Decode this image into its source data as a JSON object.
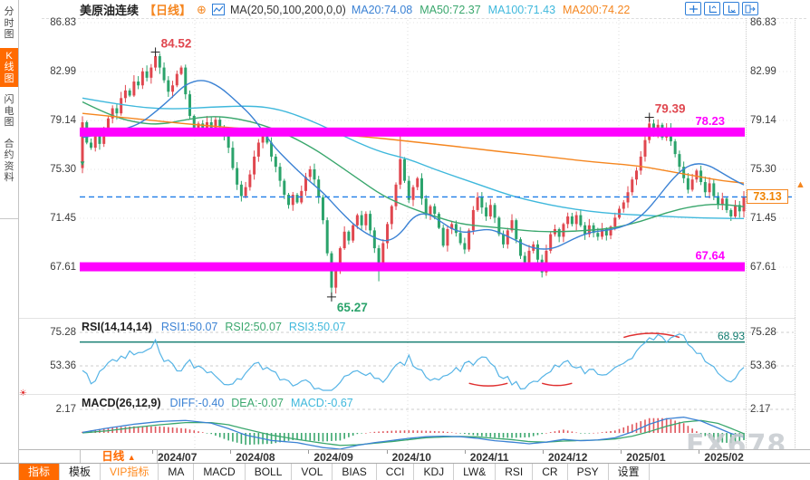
{
  "header": {
    "title": "美原油连续",
    "period_label": "【日线】",
    "ma_formula": "MA(20,50,100,200,0,0)",
    "ma_values": [
      {
        "label": "MA20:74.08",
        "color": "#3b82d4"
      },
      {
        "label": "MA50:72.37",
        "color": "#3aa76d"
      },
      {
        "label": "MA100:71.43",
        "color": "#3fb8dc"
      },
      {
        "label": "MA200:74.22",
        "color": "#f5861f"
      }
    ]
  },
  "sidebar": {
    "items": [
      {
        "label": "分时图",
        "active": false
      },
      {
        "label": "K线图",
        "active": true
      },
      {
        "label": "闪电图",
        "active": false
      },
      {
        "label": "合约资料",
        "active": false
      }
    ]
  },
  "rsi_header": {
    "formula": "RSI(14,14,14)",
    "values": [
      {
        "label": "RSI1:50.07",
        "color": "#3b82d4"
      },
      {
        "label": "RSI2:50.07",
        "color": "#3aa76d"
      },
      {
        "label": "RSI3:50.07",
        "color": "#3fb8dc"
      }
    ]
  },
  "macd_header": {
    "formula": "MACD(26,12,9)",
    "values": [
      {
        "label": "DIFF:-0.40",
        "color": "#3b82d4"
      },
      {
        "label": "DEA:-0.07",
        "color": "#3aa76d"
      },
      {
        "label": "MACD:-0.67",
        "color": "#3fb8dc"
      }
    ]
  },
  "x_axis": {
    "period": "日线",
    "dates": [
      "2024/07",
      "2024/08",
      "2024/09",
      "2024/10",
      "2024/11",
      "2024/12",
      "2025/01",
      "2025/02"
    ]
  },
  "toolbar": {
    "tabs": [
      {
        "label": "指标",
        "active": true
      },
      {
        "label": "模板"
      },
      {
        "label": "VIP指标",
        "vip": true
      },
      {
        "label": "MA"
      },
      {
        "label": "MACD"
      },
      {
        "label": "BOLL"
      },
      {
        "label": "VOL"
      },
      {
        "label": "BIAS"
      },
      {
        "label": "CCI"
      },
      {
        "label": "KDJ"
      },
      {
        "label": "LW&"
      },
      {
        "label": "RSI"
      },
      {
        "label": "CR"
      },
      {
        "label": "PSY"
      },
      {
        "label": "设置"
      }
    ]
  },
  "annotations": {
    "peak_high": "84.52",
    "jan_high": "79.39",
    "sep_low": "65.27",
    "resistance": "78.23",
    "support": "67.64",
    "last_price": "73.13",
    "rsi_level": "68.93"
  },
  "watermark": "FX678",
  "colors": {
    "up": "#e0474f",
    "down": "#2ba36b",
    "ma20": "#3b82d4",
    "ma50": "#3aa76d",
    "ma100": "#3fb8dc",
    "ma200": "#f5861f",
    "band": "#ff00ff",
    "dashed": "#1f7ce8",
    "rsi_line": "#56b4e6",
    "teal": "#0f7a6e",
    "arc_red": "#e03030",
    "hist_up": "#e0565c",
    "hist_down": "#3aa76d"
  },
  "chart_data": {
    "type": "candlestick",
    "symbol": "美原油连续",
    "period": "日线",
    "y_axis": [
      86.83,
      82.99,
      79.14,
      75.3,
      71.45,
      67.61
    ],
    "first_open": 75.4,
    "closes": [
      79.0,
      77.4,
      77.0,
      77.9,
      77.3,
      78.3,
      79.3,
      80.1,
      79.7,
      80.9,
      81.5,
      81.1,
      82.2,
      81.9,
      83.0,
      82.5,
      83.3,
      84.2,
      83.3,
      82.3,
      81.4,
      81.9,
      82.8,
      83.3,
      81.2,
      79.5,
      78.4,
      78.9,
      78.3,
      79.0,
      78.5,
      79.2,
      78.6,
      77.9,
      77.0,
      75.4,
      74.1,
      73.2,
      73.9,
      74.9,
      76.3,
      77.4,
      78.1,
      77.4,
      76.3,
      75.5,
      74.4,
      73.3,
      72.5,
      73.3,
      72.7,
      73.6,
      74.7,
      75.3,
      74.5,
      73.1,
      71.3,
      68.7,
      66.0,
      67.4,
      69.1,
      70.4,
      69.7,
      70.9,
      71.7,
      70.9,
      71.8,
      70.5,
      69.1,
      67.8,
      69.5,
      71.0,
      72.4,
      74.1,
      76.1,
      74.4,
      72.9,
      73.9,
      74.6,
      73.0,
      71.7,
      72.4,
      71.8,
      70.7,
      69.3,
      70.6,
      71.0,
      70.3,
      69.5,
      69.0,
      70.5,
      72.1,
      73.1,
      72.3,
      71.6,
      72.5,
      71.5,
      70.2,
      69.4,
      70.5,
      71.3,
      69.8,
      68.5,
      68.0,
      68.9,
      69.4,
      68.2,
      67.2,
      68.9,
      70.2,
      70.6,
      70.0,
      71.0,
      71.6,
      71.0,
      71.7,
      70.9,
      70.2,
      70.9,
      70.3,
      70.0,
      70.6,
      70.1,
      70.8,
      71.5,
      72.2,
      72.7,
      73.5,
      74.5,
      75.2,
      76.3,
      77.6,
      78.9,
      78.1,
      78.8,
      77.8,
      78.5,
      77.5,
      76.5,
      75.5,
      74.6,
      73.7,
      74.5,
      75.2,
      74.3,
      73.5,
      74.2,
      73.2,
      72.5,
      73.0,
      72.1,
      71.6,
      72.5,
      72.0,
      73.13
    ],
    "wick_overrides": {
      "0": {
        "low": 75.0
      },
      "17": {
        "high": 84.52
      },
      "58": {
        "low": 65.27
      },
      "69": {
        "low": 66.5
      },
      "74": {
        "high": 77.9
      },
      "107": {
        "low": 66.8
      },
      "132": {
        "high": 79.39
      }
    },
    "annotations": [
      {
        "index": 17,
        "price": 84.52,
        "text": "84.52",
        "pos": "above",
        "color": "red"
      },
      {
        "index": 58,
        "price": 65.27,
        "text": "65.27",
        "pos": "below",
        "color": "green"
      },
      {
        "index": 132,
        "price": 79.39,
        "text": "79.39",
        "pos": "above",
        "color": "red"
      }
    ],
    "support_resistance": [
      {
        "value": 78.23,
        "label": "78.23"
      },
      {
        "value": 67.64,
        "label": "67.64"
      }
    ],
    "last_price": 73.13,
    "ma20_anchors": [
      [
        0,
        77.8
      ],
      [
        8,
        78.3
      ],
      [
        13,
        78.8
      ],
      [
        17,
        79.8
      ],
      [
        21,
        81.0
      ],
      [
        24,
        82.0
      ],
      [
        28,
        82.4
      ],
      [
        32,
        81.8
      ],
      [
        36,
        80.6
      ],
      [
        40,
        79.3
      ],
      [
        44,
        77.3
      ],
      [
        48,
        75.9
      ],
      [
        52,
        74.6
      ],
      [
        56,
        73.5
      ],
      [
        60,
        72.0
      ],
      [
        64,
        70.7
      ],
      [
        68,
        69.9
      ],
      [
        71,
        69.6
      ],
      [
        74,
        70.2
      ],
      [
        77,
        71.6
      ],
      [
        80,
        71.9
      ],
      [
        83,
        71.3
      ],
      [
        86,
        70.6
      ],
      [
        89,
        70.3
      ],
      [
        92,
        70.5
      ],
      [
        95,
        70.6
      ],
      [
        98,
        70.2
      ],
      [
        101,
        69.7
      ],
      [
        104,
        69.2
      ],
      [
        107,
        69.0
      ],
      [
        110,
        69.1
      ],
      [
        113,
        69.6
      ],
      [
        116,
        70.1
      ],
      [
        119,
        70.4
      ],
      [
        122,
        70.5
      ],
      [
        125,
        70.7
      ],
      [
        128,
        71.1
      ],
      [
        131,
        71.9
      ],
      [
        134,
        73.1
      ],
      [
        137,
        74.4
      ],
      [
        140,
        75.4
      ],
      [
        143,
        75.8
      ],
      [
        146,
        75.6
      ],
      [
        149,
        75.0
      ],
      [
        152,
        74.4
      ],
      [
        154,
        74.08
      ]
    ],
    "ma50_anchors": [
      [
        0,
        80.6
      ],
      [
        6,
        79.6
      ],
      [
        12,
        79.0
      ],
      [
        18,
        78.8
      ],
      [
        24,
        79.2
      ],
      [
        30,
        79.5
      ],
      [
        36,
        79.3
      ],
      [
        42,
        78.8
      ],
      [
        48,
        78.0
      ],
      [
        54,
        76.9
      ],
      [
        58,
        76.0
      ],
      [
        64,
        74.6
      ],
      [
        70,
        73.2
      ],
      [
        76,
        72.3
      ],
      [
        82,
        71.6
      ],
      [
        88,
        71.0
      ],
      [
        94,
        70.8
      ],
      [
        100,
        70.6
      ],
      [
        106,
        70.4
      ],
      [
        112,
        70.4
      ],
      [
        118,
        70.5
      ],
      [
        124,
        70.7
      ],
      [
        130,
        71.2
      ],
      [
        136,
        71.9
      ],
      [
        142,
        72.4
      ],
      [
        148,
        72.6
      ],
      [
        154,
        72.37
      ]
    ],
    "ma100_anchors": [
      [
        0,
        80.9
      ],
      [
        10,
        80.3
      ],
      [
        20,
        80.0
      ],
      [
        30,
        80.2
      ],
      [
        40,
        80.3
      ],
      [
        46,
        80.0
      ],
      [
        52,
        79.3
      ],
      [
        58,
        78.4
      ],
      [
        64,
        77.4
      ],
      [
        70,
        76.6
      ],
      [
        76,
        76.1
      ],
      [
        82,
        75.3
      ],
      [
        88,
        74.6
      ],
      [
        94,
        73.9
      ],
      [
        100,
        73.2
      ],
      [
        106,
        72.7
      ],
      [
        112,
        72.3
      ],
      [
        118,
        72.0
      ],
      [
        124,
        71.8
      ],
      [
        130,
        71.7
      ],
      [
        136,
        71.6
      ],
      [
        142,
        71.5
      ],
      [
        148,
        71.45
      ],
      [
        154,
        71.43
      ]
    ],
    "ma200_anchors": [
      [
        0,
        79.7
      ],
      [
        12,
        79.3
      ],
      [
        23,
        78.9
      ],
      [
        34,
        78.6
      ],
      [
        44,
        78.3
      ],
      [
        55,
        78.1
      ],
      [
        65,
        77.9
      ],
      [
        76,
        77.5
      ],
      [
        87,
        77.1
      ],
      [
        97,
        76.7
      ],
      [
        108,
        76.3
      ],
      [
        118,
        75.9
      ],
      [
        129,
        75.6
      ],
      [
        134,
        75.3
      ],
      [
        139,
        75.0
      ],
      [
        144,
        74.7
      ],
      [
        149,
        74.4
      ],
      [
        154,
        74.22
      ]
    ],
    "rsi": {
      "axis": [
        75.28,
        53.36
      ],
      "line_level": 68.93,
      "anchors": [
        [
          0,
          50
        ],
        [
          2,
          42
        ],
        [
          5,
          52
        ],
        [
          8,
          58
        ],
        [
          11,
          62
        ],
        [
          14,
          60
        ],
        [
          17,
          68
        ],
        [
          19,
          58
        ],
        [
          22,
          50
        ],
        [
          25,
          55
        ],
        [
          28,
          52
        ],
        [
          31,
          46
        ],
        [
          34,
          40
        ],
        [
          37,
          44
        ],
        [
          40,
          56
        ],
        [
          43,
          52
        ],
        [
          46,
          45
        ],
        [
          49,
          40
        ],
        [
          52,
          46
        ],
        [
          55,
          38
        ],
        [
          58,
          34
        ],
        [
          61,
          45
        ],
        [
          64,
          50
        ],
        [
          67,
          47
        ],
        [
          70,
          42
        ],
        [
          73,
          52
        ],
        [
          76,
          58
        ],
        [
          79,
          50
        ],
        [
          82,
          44
        ],
        [
          85,
          48
        ],
        [
          88,
          52
        ],
        [
          91,
          55
        ],
        [
          94,
          58
        ],
        [
          97,
          48
        ],
        [
          100,
          42
        ],
        [
          103,
          40
        ],
        [
          106,
          44
        ],
        [
          109,
          52
        ],
        [
          112,
          56
        ],
        [
          115,
          52
        ],
        [
          118,
          50
        ],
        [
          121,
          48
        ],
        [
          124,
          52
        ],
        [
          127,
          58
        ],
        [
          130,
          66
        ],
        [
          133,
          72
        ],
        [
          136,
          70
        ],
        [
          139,
          74
        ],
        [
          141,
          68
        ],
        [
          144,
          60
        ],
        [
          147,
          52
        ],
        [
          149,
          46
        ],
        [
          151,
          41
        ],
        [
          153,
          48
        ],
        [
          154,
          52
        ]
      ],
      "arcs": [
        {
          "i1": 90,
          "i2": 99,
          "v": 42,
          "b": 6
        },
        {
          "i1": 107,
          "i2": 114,
          "v": 42,
          "b": 5
        },
        {
          "i1": 126,
          "i2": 139,
          "v": 72,
          "b": -9
        }
      ]
    },
    "macd": {
      "axis": [
        2.17
      ],
      "diff_anchors": [
        [
          0,
          0.05
        ],
        [
          6,
          0.45
        ],
        [
          12,
          0.8
        ],
        [
          18,
          1.05
        ],
        [
          24,
          1.15
        ],
        [
          30,
          0.9
        ],
        [
          34,
          0.4
        ],
        [
          38,
          -0.2
        ],
        [
          44,
          -0.7
        ],
        [
          50,
          -0.9
        ],
        [
          56,
          -1.35
        ],
        [
          60,
          -1.5
        ],
        [
          64,
          -1.15
        ],
        [
          68,
          -0.9
        ],
        [
          72,
          -0.7
        ],
        [
          76,
          -0.5
        ],
        [
          80,
          -0.35
        ],
        [
          84,
          -0.3
        ],
        [
          88,
          -0.35
        ],
        [
          92,
          -0.5
        ],
        [
          96,
          -0.72
        ],
        [
          100,
          -0.85
        ],
        [
          104,
          -1.0
        ],
        [
          108,
          -0.85
        ],
        [
          112,
          -0.6
        ],
        [
          116,
          -0.72
        ],
        [
          120,
          -0.65
        ],
        [
          124,
          -0.45
        ],
        [
          128,
          0.1
        ],
        [
          132,
          0.8
        ],
        [
          136,
          1.3
        ],
        [
          140,
          1.45
        ],
        [
          144,
          1.1
        ],
        [
          148,
          0.45
        ],
        [
          151,
          -0.05
        ],
        [
          154,
          -0.4
        ]
      ],
      "dea_anchors": [
        [
          0,
          0.0
        ],
        [
          6,
          0.2
        ],
        [
          12,
          0.5
        ],
        [
          18,
          0.75
        ],
        [
          24,
          0.95
        ],
        [
          30,
          0.95
        ],
        [
          34,
          0.75
        ],
        [
          38,
          0.35
        ],
        [
          44,
          -0.2
        ],
        [
          50,
          -0.6
        ],
        [
          56,
          -0.95
        ],
        [
          60,
          -1.15
        ],
        [
          64,
          -1.1
        ],
        [
          68,
          -0.95
        ],
        [
          72,
          -0.8
        ],
        [
          76,
          -0.62
        ],
        [
          80,
          -0.45
        ],
        [
          84,
          -0.37
        ],
        [
          88,
          -0.33
        ],
        [
          92,
          -0.37
        ],
        [
          96,
          -0.5
        ],
        [
          100,
          -0.62
        ],
        [
          104,
          -0.8
        ],
        [
          108,
          -0.85
        ],
        [
          112,
          -0.75
        ],
        [
          116,
          -0.7
        ],
        [
          120,
          -0.66
        ],
        [
          124,
          -0.56
        ],
        [
          128,
          -0.3
        ],
        [
          132,
          0.12
        ],
        [
          136,
          0.62
        ],
        [
          140,
          1.0
        ],
        [
          144,
          1.15
        ],
        [
          148,
          0.88
        ],
        [
          151,
          0.42
        ],
        [
          154,
          -0.07
        ]
      ]
    }
  }
}
